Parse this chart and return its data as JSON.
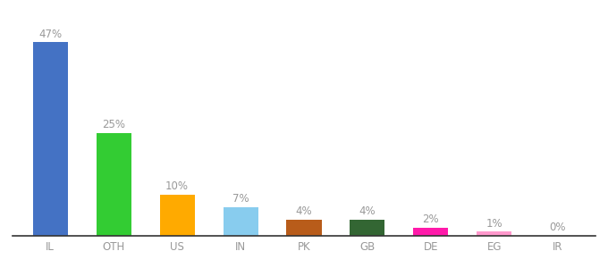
{
  "categories": [
    "IL",
    "OTH",
    "US",
    "IN",
    "PK",
    "GB",
    "DE",
    "EG",
    "IR"
  ],
  "values": [
    47,
    25,
    10,
    7,
    4,
    4,
    2,
    1,
    0
  ],
  "colors": [
    "#4472c4",
    "#33cc33",
    "#ffaa00",
    "#88ccee",
    "#b85c1a",
    "#336633",
    "#ff1aaa",
    "#ff99cc",
    "#e0e0e0"
  ],
  "labels": [
    "47%",
    "25%",
    "10%",
    "7%",
    "4%",
    "4%",
    "2%",
    "1%",
    "0%"
  ],
  "label_color": "#999999",
  "label_fontsize": 8.5,
  "tick_fontsize": 8.5,
  "tick_color": "#999999",
  "bar_width": 0.55,
  "ylim": [
    0,
    54
  ],
  "figsize": [
    6.8,
    3.0
  ],
  "dpi": 100
}
